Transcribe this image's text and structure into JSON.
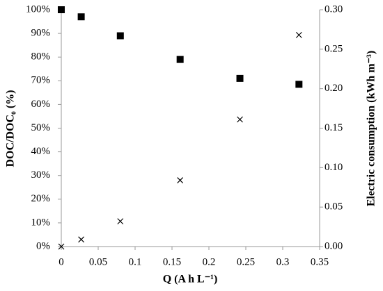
{
  "chart_data": {
    "type": "scatter",
    "xlabel": "Q (A h L⁻¹)",
    "ylabel": "DOC/DOC₀ (%)",
    "y2label": "Electric consumption (kWh m⁻³)",
    "x": [
      0,
      0.027,
      0.08,
      0.161,
      0.242,
      0.322
    ],
    "series": [
      {
        "color": "#000000",
        "marker": "square",
        "values": [
          100,
          97,
          89,
          79,
          71,
          68.5
        ]
      },
      {
        "color": "#000000",
        "marker": "x",
        "axis": "y2",
        "values": [
          0,
          0.009,
          0.032,
          0.084,
          0.161,
          0.268
        ]
      }
    ],
    "xlim": [
      0,
      0.35
    ],
    "xticks": [
      0,
      0.05,
      0.1,
      0.15,
      0.2,
      0.25,
      0.3,
      0.35
    ],
    "ylim": [
      0,
      100
    ],
    "yticks": [
      {
        "value": 0,
        "label": "0%"
      },
      {
        "value": 10,
        "label": "10%"
      },
      {
        "value": 20,
        "label": "20%"
      },
      {
        "value": 30,
        "label": "30%"
      },
      {
        "value": 40,
        "label": "40%"
      },
      {
        "value": 50,
        "label": "50%"
      },
      {
        "value": 60,
        "label": "60%"
      },
      {
        "value": 70,
        "label": "70%"
      },
      {
        "value": 80,
        "label": "80%"
      },
      {
        "value": 90,
        "label": "90%"
      },
      {
        "value": 100,
        "label": "100%"
      }
    ],
    "y2lim": [
      0,
      0.3
    ],
    "y2ticks": [
      {
        "value": 0,
        "label": "0.00"
      },
      {
        "value": 0.05,
        "label": "0.05"
      },
      {
        "value": 0.1,
        "label": "0.10"
      },
      {
        "value": 0.15,
        "label": "0.15"
      },
      {
        "value": 0.2,
        "label": "0.20"
      },
      {
        "value": 0.25,
        "label": "0.25"
      },
      {
        "value": 0.3,
        "label": "0.30"
      }
    ],
    "grid": false
  }
}
